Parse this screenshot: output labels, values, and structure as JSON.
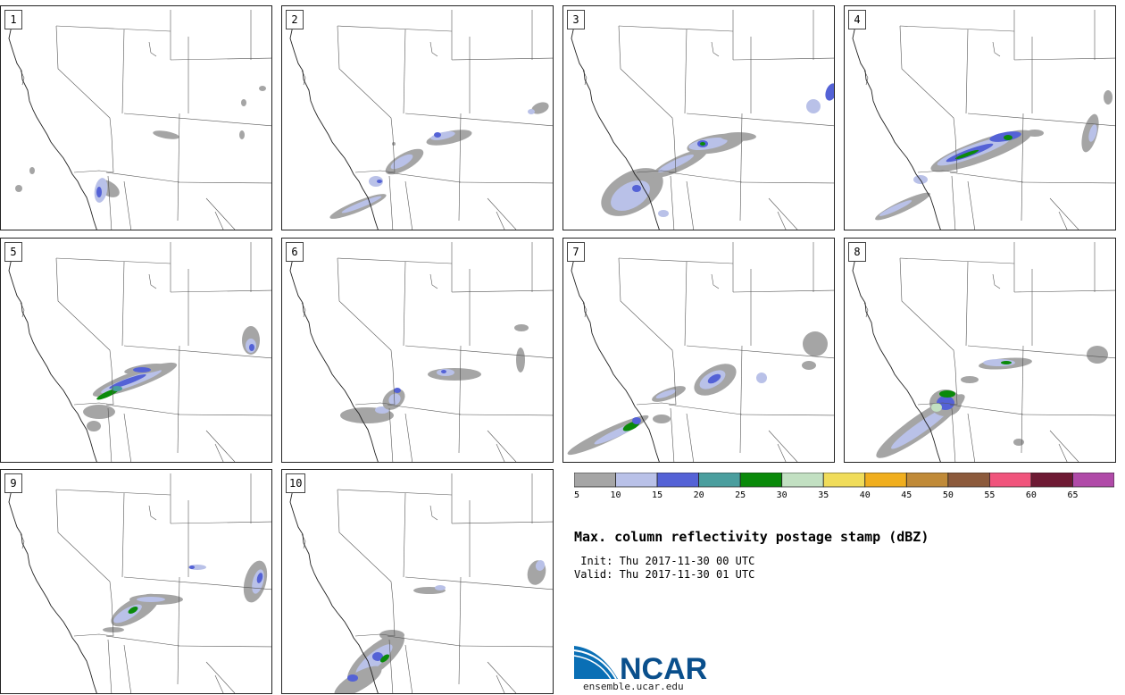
{
  "product": {
    "title": "Max. column reflectivity postage stamp (dBZ)",
    "init_label": " Init:",
    "init_value": "Thu 2017-11-30 00 UTC",
    "valid_label": "Valid:",
    "valid_value": "Thu 2017-11-30 01 UTC"
  },
  "colorbar": {
    "ticks": [
      "5",
      "10",
      "15",
      "20",
      "25",
      "30",
      "35",
      "40",
      "45",
      "50",
      "55",
      "60",
      "65"
    ],
    "colors": [
      "#a5a5a5",
      "#b9c1e8",
      "#5462d6",
      "#4a9e9e",
      "#0a8a0a",
      "#c2e0c2",
      "#f0dc5a",
      "#f0ae1e",
      "#c08a38",
      "#8c5a3c",
      "#f0547c",
      "#6e1a34",
      "#b04aa8"
    ]
  },
  "panels": [
    {
      "label": "1"
    },
    {
      "label": "2"
    },
    {
      "label": "3"
    },
    {
      "label": "4"
    },
    {
      "label": "5"
    },
    {
      "label": "6"
    },
    {
      "label": "7"
    },
    {
      "label": "8"
    },
    {
      "label": "9"
    },
    {
      "label": "10"
    }
  ],
  "logo": {
    "name": "NCAR",
    "url": "ensemble.ucar.edu"
  }
}
